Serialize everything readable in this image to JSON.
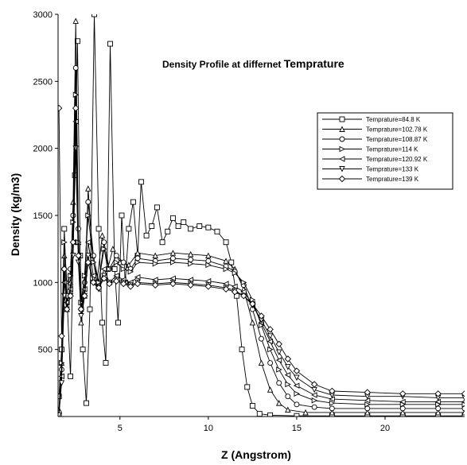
{
  "chart_data": {
    "type": "line",
    "title_part1": "Density Profile at  differnet ",
    "title_part2": "Temprature",
    "xlabel": "Z (Angstrom)",
    "ylabel": "Density (kg/m3)",
    "xlim": [
      1.5,
      24.5
    ],
    "ylim": [
      0,
      3000
    ],
    "xticks": [
      5,
      10,
      15,
      20
    ],
    "yticks": [
      500,
      1000,
      1500,
      2000,
      2500,
      3000
    ],
    "legend_position": "top-right",
    "grid": false,
    "series": [
      {
        "name": "Temprature=84.8 K",
        "marker": "square",
        "points": [
          [
            1.55,
            150
          ],
          [
            1.7,
            500
          ],
          [
            1.85,
            1400
          ],
          [
            2.0,
            900
          ],
          [
            2.2,
            300
          ],
          [
            2.45,
            1800
          ],
          [
            2.6,
            2800
          ],
          [
            2.75,
            1200
          ],
          [
            2.9,
            500
          ],
          [
            3.1,
            100
          ],
          [
            3.3,
            800
          ],
          [
            3.55,
            3000
          ],
          [
            3.8,
            1400
          ],
          [
            4.0,
            700
          ],
          [
            4.2,
            400
          ],
          [
            4.45,
            2780
          ],
          [
            4.7,
            1100
          ],
          [
            4.9,
            700
          ],
          [
            5.1,
            1500
          ],
          [
            5.3,
            1000
          ],
          [
            5.5,
            1400
          ],
          [
            5.75,
            1600
          ],
          [
            6.0,
            1200
          ],
          [
            6.2,
            1750
          ],
          [
            6.5,
            1350
          ],
          [
            6.8,
            1420
          ],
          [
            7.1,
            1560
          ],
          [
            7.4,
            1300
          ],
          [
            7.7,
            1380
          ],
          [
            8.0,
            1480
          ],
          [
            8.3,
            1420
          ],
          [
            8.6,
            1450
          ],
          [
            9.0,
            1400
          ],
          [
            9.5,
            1420
          ],
          [
            10.0,
            1410
          ],
          [
            10.5,
            1380
          ],
          [
            11.0,
            1300
          ],
          [
            11.3,
            1150
          ],
          [
            11.6,
            900
          ],
          [
            11.9,
            500
          ],
          [
            12.2,
            220
          ],
          [
            12.5,
            80
          ],
          [
            12.9,
            20
          ],
          [
            13.5,
            10
          ],
          [
            15,
            5
          ],
          [
            17,
            5
          ],
          [
            19,
            5
          ],
          [
            21,
            5
          ],
          [
            23,
            5
          ],
          [
            24.5,
            5
          ]
        ]
      },
      {
        "name": "Temprature=102.78 K",
        "marker": "triangle-up",
        "points": [
          [
            1.55,
            50
          ],
          [
            1.7,
            400
          ],
          [
            1.85,
            1200
          ],
          [
            2.0,
            800
          ],
          [
            2.2,
            1000
          ],
          [
            2.35,
            1600
          ],
          [
            2.5,
            2950
          ],
          [
            2.65,
            1300
          ],
          [
            2.8,
            700
          ],
          [
            3.0,
            900
          ],
          [
            3.2,
            1700
          ],
          [
            3.45,
            1200
          ],
          [
            3.7,
            1000
          ],
          [
            4.0,
            1350
          ],
          [
            4.3,
            1100
          ],
          [
            4.6,
            1250
          ],
          [
            5.0,
            1150
          ],
          [
            5.5,
            1130
          ],
          [
            6.0,
            1220
          ],
          [
            7.0,
            1200
          ],
          [
            8.0,
            1220
          ],
          [
            9.0,
            1210
          ],
          [
            10.0,
            1200
          ],
          [
            11.0,
            1160
          ],
          [
            11.5,
            1100
          ],
          [
            12.0,
            950
          ],
          [
            12.5,
            700
          ],
          [
            13.0,
            400
          ],
          [
            13.5,
            200
          ],
          [
            14.0,
            100
          ],
          [
            14.5,
            50
          ],
          [
            15.5,
            30
          ],
          [
            17,
            30
          ],
          [
            19,
            30
          ],
          [
            21,
            30
          ],
          [
            23,
            30
          ],
          [
            24.5,
            30
          ]
        ]
      },
      {
        "name": "Temprature=108.87 K",
        "marker": "circle",
        "points": [
          [
            1.55,
            30
          ],
          [
            1.7,
            350
          ],
          [
            1.85,
            1100
          ],
          [
            2.0,
            900
          ],
          [
            2.2,
            1100
          ],
          [
            2.35,
            1500
          ],
          [
            2.5,
            2600
          ],
          [
            2.65,
            1400
          ],
          [
            2.8,
            800
          ],
          [
            3.0,
            1000
          ],
          [
            3.2,
            1600
          ],
          [
            3.5,
            1200
          ],
          [
            3.8,
            1000
          ],
          [
            4.1,
            1300
          ],
          [
            4.4,
            1100
          ],
          [
            4.8,
            1200
          ],
          [
            5.2,
            1150
          ],
          [
            5.6,
            1100
          ],
          [
            6.0,
            1180
          ],
          [
            7.0,
            1160
          ],
          [
            8.0,
            1180
          ],
          [
            9.0,
            1170
          ],
          [
            10.0,
            1160
          ],
          [
            11.0,
            1120
          ],
          [
            11.5,
            1080
          ],
          [
            12.0,
            980
          ],
          [
            12.5,
            800
          ],
          [
            13.0,
            580
          ],
          [
            13.5,
            400
          ],
          [
            14.0,
            250
          ],
          [
            14.5,
            150
          ],
          [
            15.0,
            90
          ],
          [
            16,
            70
          ],
          [
            17,
            60
          ],
          [
            19,
            60
          ],
          [
            21,
            60
          ],
          [
            23,
            60
          ],
          [
            24.5,
            60
          ]
        ]
      },
      {
        "name": "Temprature=114 K",
        "marker": "triangle-right",
        "points": [
          [
            1.55,
            20
          ],
          [
            1.7,
            400
          ],
          [
            1.85,
            1300
          ],
          [
            2.0,
            1000
          ],
          [
            2.2,
            1050
          ],
          [
            2.35,
            1450
          ],
          [
            2.5,
            2400
          ],
          [
            2.65,
            1300
          ],
          [
            2.8,
            850
          ],
          [
            3.0,
            1050
          ],
          [
            3.2,
            1500
          ],
          [
            3.5,
            1150
          ],
          [
            3.8,
            1000
          ],
          [
            4.1,
            1250
          ],
          [
            4.4,
            1100
          ],
          [
            4.8,
            1150
          ],
          [
            5.2,
            1100
          ],
          [
            5.6,
            1080
          ],
          [
            6.0,
            1150
          ],
          [
            7.0,
            1140
          ],
          [
            8.0,
            1150
          ],
          [
            9.0,
            1140
          ],
          [
            10.0,
            1130
          ],
          [
            11.0,
            1100
          ],
          [
            11.5,
            1070
          ],
          [
            12.0,
            1000
          ],
          [
            12.5,
            870
          ],
          [
            13.0,
            680
          ],
          [
            13.5,
            500
          ],
          [
            14.0,
            350
          ],
          [
            14.5,
            240
          ],
          [
            15.0,
            170
          ],
          [
            16,
            120
          ],
          [
            17,
            100
          ],
          [
            19,
            90
          ],
          [
            21,
            90
          ],
          [
            23,
            90
          ],
          [
            24.5,
            90
          ]
        ]
      },
      {
        "name": "Temprature=120.92 K",
        "marker": "triangle-left",
        "points": [
          [
            1.55,
            10
          ],
          [
            1.7,
            300
          ],
          [
            1.85,
            1000
          ],
          [
            2.0,
            850
          ],
          [
            2.2,
            950
          ],
          [
            2.35,
            1300
          ],
          [
            2.5,
            2200
          ],
          [
            2.65,
            1200
          ],
          [
            2.8,
            800
          ],
          [
            3.0,
            950
          ],
          [
            3.2,
            1300
          ],
          [
            3.5,
            1050
          ],
          [
            3.8,
            950
          ],
          [
            4.1,
            1100
          ],
          [
            4.4,
            1000
          ],
          [
            4.8,
            1050
          ],
          [
            5.2,
            1020
          ],
          [
            5.6,
            1000
          ],
          [
            6.0,
            1040
          ],
          [
            7.0,
            1020
          ],
          [
            8.0,
            1030
          ],
          [
            9.0,
            1020
          ],
          [
            10.0,
            1010
          ],
          [
            11.0,
            990
          ],
          [
            11.5,
            970
          ],
          [
            12.0,
            930
          ],
          [
            12.5,
            840
          ],
          [
            13.0,
            700
          ],
          [
            13.5,
            560
          ],
          [
            14.0,
            420
          ],
          [
            14.5,
            310
          ],
          [
            15.0,
            230
          ],
          [
            16,
            160
          ],
          [
            17,
            130
          ],
          [
            19,
            120
          ],
          [
            21,
            110
          ],
          [
            23,
            110
          ],
          [
            24.5,
            110
          ]
        ]
      },
      {
        "name": "Temprature=133 K",
        "marker": "triangle-down",
        "points": [
          [
            1.55,
            10
          ],
          [
            1.7,
            250
          ],
          [
            1.85,
            900
          ],
          [
            2.0,
            800
          ],
          [
            2.2,
            900
          ],
          [
            2.35,
            1200
          ],
          [
            2.5,
            2000
          ],
          [
            2.65,
            1150
          ],
          [
            2.8,
            750
          ],
          [
            3.0,
            900
          ],
          [
            3.2,
            1200
          ],
          [
            3.5,
            1000
          ],
          [
            3.8,
            950
          ],
          [
            4.1,
            1050
          ],
          [
            4.4,
            1000
          ],
          [
            4.8,
            1020
          ],
          [
            5.2,
            1000
          ],
          [
            5.6,
            980
          ],
          [
            6.0,
            1000
          ],
          [
            7.0,
            990
          ],
          [
            8.0,
            1000
          ],
          [
            9.0,
            990
          ],
          [
            10.0,
            980
          ],
          [
            11.0,
            960
          ],
          [
            11.5,
            940
          ],
          [
            12.0,
            900
          ],
          [
            12.5,
            830
          ],
          [
            13.0,
            720
          ],
          [
            13.5,
            600
          ],
          [
            14.0,
            480
          ],
          [
            14.5,
            370
          ],
          [
            15.0,
            290
          ],
          [
            16,
            200
          ],
          [
            17,
            160
          ],
          [
            19,
            150
          ],
          [
            21,
            150
          ],
          [
            23,
            140
          ],
          [
            24.5,
            140
          ]
        ]
      },
      {
        "name": "Temprature=139 K",
        "marker": "diamond",
        "points": [
          [
            1.55,
            2300
          ],
          [
            1.7,
            600
          ],
          [
            1.85,
            1100
          ],
          [
            2.0,
            800
          ],
          [
            2.2,
            900
          ],
          [
            2.35,
            1300
          ],
          [
            2.5,
            2300
          ],
          [
            2.65,
            1200
          ],
          [
            2.8,
            800
          ],
          [
            3.0,
            900
          ],
          [
            3.2,
            1150
          ],
          [
            3.5,
            1000
          ],
          [
            3.8,
            960
          ],
          [
            4.1,
            1030
          ],
          [
            4.4,
            990
          ],
          [
            4.8,
            1010
          ],
          [
            5.2,
            990
          ],
          [
            5.6,
            970
          ],
          [
            6.0,
            990
          ],
          [
            7.0,
            980
          ],
          [
            8.0,
            990
          ],
          [
            9.0,
            980
          ],
          [
            10.0,
            970
          ],
          [
            11.0,
            950
          ],
          [
            11.5,
            930
          ],
          [
            12.0,
            900
          ],
          [
            12.5,
            840
          ],
          [
            13.0,
            750
          ],
          [
            13.5,
            650
          ],
          [
            14.0,
            540
          ],
          [
            14.5,
            430
          ],
          [
            15.0,
            340
          ],
          [
            16,
            240
          ],
          [
            17,
            190
          ],
          [
            19,
            180
          ],
          [
            21,
            170
          ],
          [
            23,
            170
          ],
          [
            24.5,
            170
          ]
        ]
      }
    ]
  }
}
